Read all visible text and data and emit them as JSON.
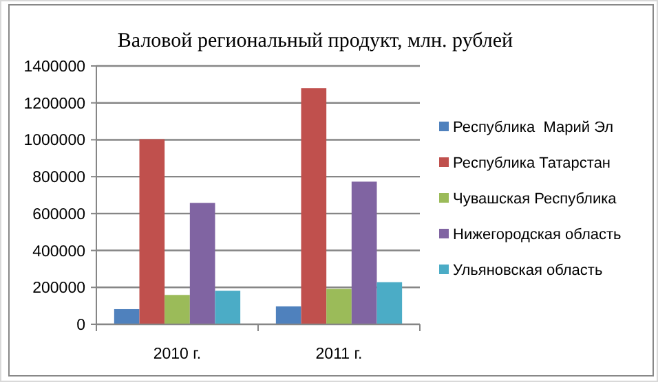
{
  "chart_data": {
    "type": "bar",
    "title": "Валовой региональный продукт, млн. рублей",
    "categories": [
      "2010 г.",
      "2011 г."
    ],
    "series": [
      {
        "name": "Республика  Марий Эл",
        "color": "#4f81bd",
        "values": [
          82000,
          97000
        ]
      },
      {
        "name": "Республика Татарстан",
        "color": "#c0504d",
        "values": [
          1003000,
          1280000
        ]
      },
      {
        "name": "Чувашская Республика",
        "color": "#9bbb59",
        "values": [
          159000,
          192000
        ]
      },
      {
        "name": "Нижегородская область",
        "color": "#8064a2",
        "values": [
          658000,
          773000
        ]
      },
      {
        "name": "Ульяновская область",
        "color": "#4bacc6",
        "values": [
          182000,
          228000
        ]
      }
    ],
    "ylim": [
      0,
      1400000
    ],
    "yticks": [
      0,
      200000,
      400000,
      600000,
      800000,
      1000000,
      1200000,
      1400000
    ],
    "grid": "y",
    "legend": "right"
  }
}
